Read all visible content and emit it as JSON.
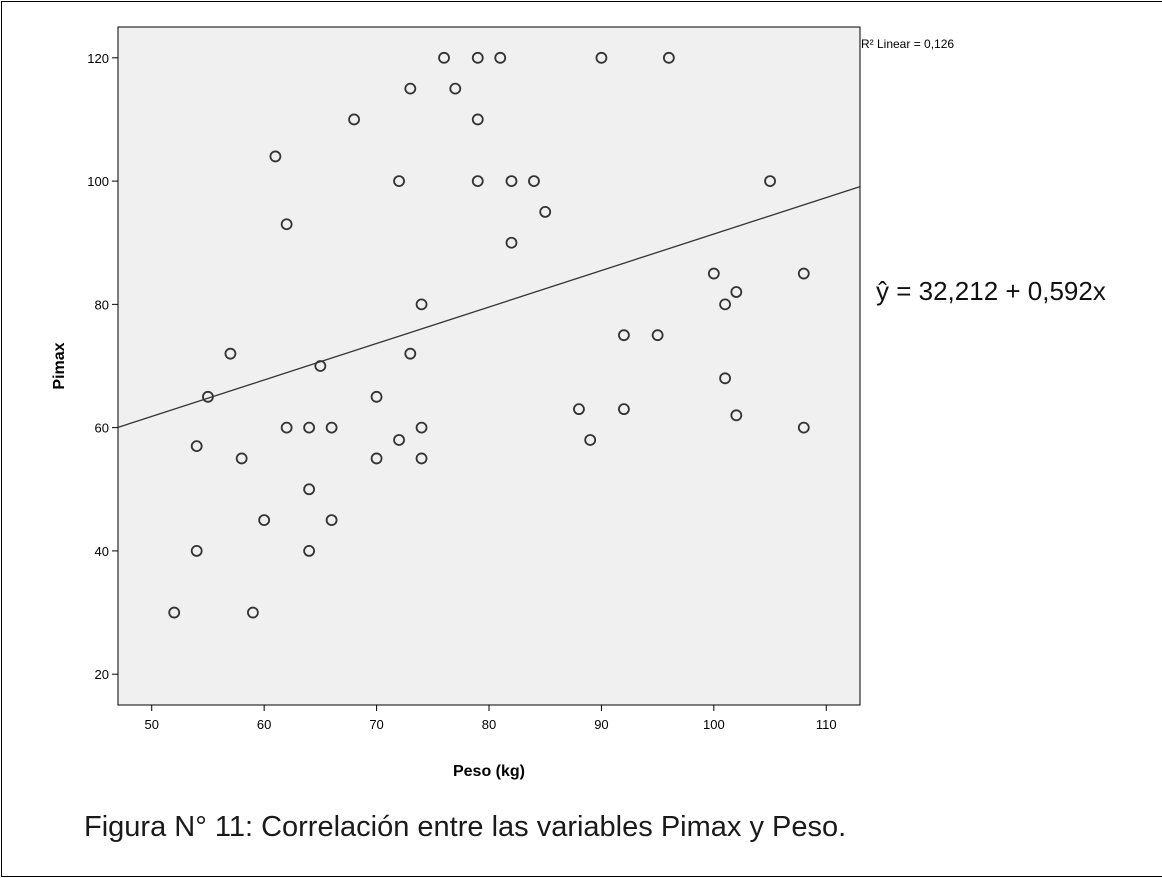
{
  "chart_data": {
    "type": "scatter",
    "xlabel": "Peso (kg)",
    "ylabel": "Pimax",
    "xlim": [
      47,
      113
    ],
    "ylim": [
      15,
      125
    ],
    "xticks": [
      50,
      60,
      70,
      80,
      90,
      100,
      110
    ],
    "yticks": [
      20,
      40,
      60,
      80,
      100,
      120
    ],
    "points": [
      {
        "x": 52,
        "y": 30
      },
      {
        "x": 54,
        "y": 40
      },
      {
        "x": 54,
        "y": 57
      },
      {
        "x": 55,
        "y": 65
      },
      {
        "x": 57,
        "y": 72
      },
      {
        "x": 58,
        "y": 55
      },
      {
        "x": 59,
        "y": 30
      },
      {
        "x": 60,
        "y": 45
      },
      {
        "x": 61,
        "y": 104
      },
      {
        "x": 62,
        "y": 93
      },
      {
        "x": 62,
        "y": 60
      },
      {
        "x": 64,
        "y": 60
      },
      {
        "x": 64,
        "y": 50
      },
      {
        "x": 64,
        "y": 40
      },
      {
        "x": 65,
        "y": 70
      },
      {
        "x": 66,
        "y": 60
      },
      {
        "x": 66,
        "y": 45
      },
      {
        "x": 68,
        "y": 110
      },
      {
        "x": 70,
        "y": 65
      },
      {
        "x": 70,
        "y": 55
      },
      {
        "x": 72,
        "y": 100
      },
      {
        "x": 72,
        "y": 58
      },
      {
        "x": 73,
        "y": 115
      },
      {
        "x": 73,
        "y": 72
      },
      {
        "x": 74,
        "y": 80
      },
      {
        "x": 74,
        "y": 60
      },
      {
        "x": 74,
        "y": 55
      },
      {
        "x": 76,
        "y": 120
      },
      {
        "x": 77,
        "y": 115
      },
      {
        "x": 79,
        "y": 120
      },
      {
        "x": 79,
        "y": 110
      },
      {
        "x": 79,
        "y": 100
      },
      {
        "x": 81,
        "y": 120
      },
      {
        "x": 82,
        "y": 100
      },
      {
        "x": 82,
        "y": 90
      },
      {
        "x": 84,
        "y": 100
      },
      {
        "x": 85,
        "y": 95
      },
      {
        "x": 88,
        "y": 63
      },
      {
        "x": 89,
        "y": 58
      },
      {
        "x": 90,
        "y": 120
      },
      {
        "x": 92,
        "y": 75
      },
      {
        "x": 92,
        "y": 63
      },
      {
        "x": 95,
        "y": 75
      },
      {
        "x": 96,
        "y": 120
      },
      {
        "x": 100,
        "y": 85
      },
      {
        "x": 101,
        "y": 80
      },
      {
        "x": 101,
        "y": 68
      },
      {
        "x": 102,
        "y": 82
      },
      {
        "x": 102,
        "y": 62
      },
      {
        "x": 105,
        "y": 100
      },
      {
        "x": 108,
        "y": 85
      },
      {
        "x": 108,
        "y": 60
      }
    ],
    "fit_line": {
      "intercept": 32.212,
      "slope": 0.592
    },
    "r2_label": "R² Linear = 0,126",
    "equation": "ŷ = 32,212 + 0,592x",
    "grid": false,
    "colors": {
      "plot_bg": "#f0f0f0",
      "marker": "#333333",
      "line": "#333333"
    }
  },
  "caption": "Figura N° 11: Correlación entre las variables Pimax y Peso."
}
